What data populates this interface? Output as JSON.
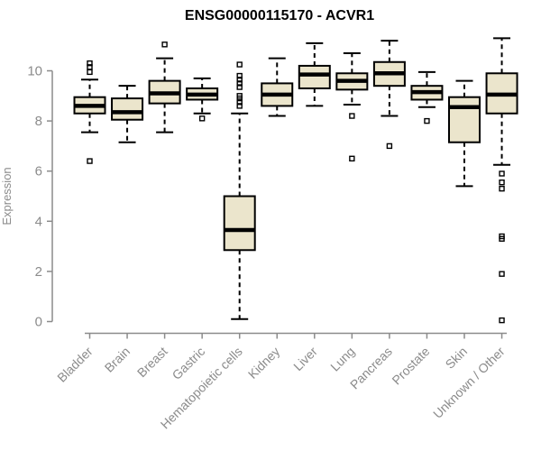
{
  "title": "ENSG00000115170 - ACVR1",
  "chart_data": {
    "type": "boxplot",
    "title": "ENSG00000115170 - ACVR1",
    "xlabel": "",
    "ylabel": "Expression",
    "ylim": [
      0,
      10
    ],
    "yticks": [
      0,
      2,
      4,
      6,
      8,
      10
    ],
    "grid": false,
    "legend": false,
    "background": "#ffffff",
    "box_fill": "#EBE5CC",
    "box_stroke": "#000000",
    "axis_color": "#8B8B8B",
    "categories": [
      "Bladder",
      "Brain",
      "Breast",
      "Gastric",
      "Hematopoietic cells",
      "Kidney",
      "Liver",
      "Lung",
      "Pancreas",
      "Prostate",
      "Skin",
      "Unknown / Other"
    ],
    "series": [
      {
        "category": "Bladder",
        "whisker_low": 7.55,
        "q1": 8.3,
        "median": 8.6,
        "q3": 8.95,
        "whisker_high": 9.65,
        "outliers": [
          10.3,
          10.15,
          9.95,
          6.4
        ]
      },
      {
        "category": "Brain",
        "whisker_low": 7.15,
        "q1": 8.05,
        "median": 8.35,
        "q3": 8.9,
        "whisker_high": 9.4,
        "outliers": []
      },
      {
        "category": "Breast",
        "whisker_low": 7.55,
        "q1": 8.7,
        "median": 9.1,
        "q3": 9.6,
        "whisker_high": 10.5,
        "outliers": [
          11.05
        ]
      },
      {
        "category": "Gastric",
        "whisker_low": 8.3,
        "q1": 8.85,
        "median": 9.05,
        "q3": 9.3,
        "whisker_high": 9.7,
        "outliers": [
          8.1
        ]
      },
      {
        "category": "Hematopoietic cells",
        "whisker_low": 0.1,
        "q1": 2.85,
        "median": 3.65,
        "q3": 5.0,
        "whisker_high": 8.3,
        "outliers": [
          10.25,
          9.8,
          9.65,
          9.5,
          9.35,
          9.0,
          8.9,
          8.75,
          8.6
        ]
      },
      {
        "category": "Kidney",
        "whisker_low": 8.2,
        "q1": 8.6,
        "median": 9.05,
        "q3": 9.5,
        "whisker_high": 10.5,
        "outliers": []
      },
      {
        "category": "Liver",
        "whisker_low": 8.6,
        "q1": 9.3,
        "median": 9.85,
        "q3": 10.2,
        "whisker_high": 11.1,
        "outliers": []
      },
      {
        "category": "Lung",
        "whisker_low": 8.65,
        "q1": 9.25,
        "median": 9.6,
        "q3": 9.9,
        "whisker_high": 10.7,
        "outliers": [
          8.2,
          6.5
        ]
      },
      {
        "category": "Pancreas",
        "whisker_low": 8.2,
        "q1": 9.4,
        "median": 9.9,
        "q3": 10.35,
        "whisker_high": 11.2,
        "outliers": [
          7.0
        ]
      },
      {
        "category": "Prostate",
        "whisker_low": 8.55,
        "q1": 8.85,
        "median": 9.15,
        "q3": 9.4,
        "whisker_high": 9.95,
        "outliers": [
          8.0
        ]
      },
      {
        "category": "Skin",
        "whisker_low": 5.4,
        "q1": 7.15,
        "median": 8.55,
        "q3": 8.95,
        "whisker_high": 9.6,
        "outliers": []
      },
      {
        "category": "Unknown / Other",
        "whisker_low": 6.25,
        "q1": 8.3,
        "median": 9.05,
        "q3": 9.9,
        "whisker_high": 11.3,
        "outliers": [
          5.9,
          5.55,
          5.3,
          3.4,
          3.3,
          1.9,
          0.05
        ]
      }
    ]
  }
}
